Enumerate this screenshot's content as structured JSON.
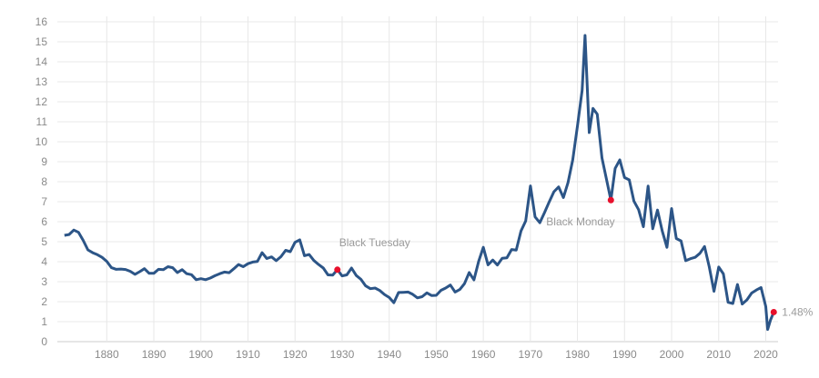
{
  "chart_data": {
    "type": "line",
    "title": "",
    "xlabel": "",
    "ylabel": "",
    "xlim": [
      1869.5,
      2023
    ],
    "ylim": [
      0,
      16
    ],
    "grid": true,
    "x_ticks": [
      1880,
      1890,
      1900,
      1910,
      1920,
      1930,
      1940,
      1950,
      1960,
      1970,
      1980,
      1990,
      2000,
      2010,
      2020
    ],
    "y_ticks": [
      0,
      1,
      2,
      3,
      4,
      5,
      6,
      7,
      8,
      9,
      10,
      11,
      12,
      13,
      14,
      15,
      16
    ],
    "line_color": "#2c5587",
    "marker_color": "#e8102c",
    "series": [
      {
        "x": [
          1871,
          1872,
          1873,
          1874,
          1875,
          1876,
          1877,
          1878,
          1879,
          1880,
          1881,
          1882,
          1883,
          1884,
          1885,
          1886,
          1887,
          1888,
          1889,
          1890,
          1891,
          1892,
          1893,
          1894,
          1895,
          1896,
          1897,
          1898,
          1899,
          1900,
          1901,
          1902,
          1903,
          1904,
          1905,
          1906,
          1907,
          1908,
          1909,
          1910,
          1911,
          1912,
          1913,
          1914,
          1915,
          1916,
          1917,
          1918,
          1919,
          1920,
          1921,
          1922,
          1923,
          1924,
          1925,
          1926,
          1927,
          1928,
          1929,
          1930,
          1931,
          1932,
          1933,
          1934,
          1935,
          1936,
          1937,
          1938,
          1939,
          1940,
          1941,
          1942,
          1943,
          1944,
          1945,
          1946,
          1947,
          1948,
          1949,
          1950,
          1951,
          1952,
          1953,
          1954,
          1955,
          1956,
          1957,
          1958,
          1959,
          1960,
          1961,
          1962,
          1963,
          1964,
          1965,
          1966,
          1967,
          1968,
          1969,
          1970,
          1971,
          1972,
          1973,
          1974,
          1975,
          1976,
          1977,
          1978,
          1979,
          1980,
          1981,
          1981.6,
          1982.5,
          1983.3,
          1984.2,
          1985.2,
          1987.1,
          1988,
          1989,
          1990,
          1991,
          1992,
          1993,
          1994,
          1995,
          1996,
          1997,
          1998,
          1999,
          2000,
          2001,
          2002,
          2003,
          2004,
          2005,
          2006,
          2007,
          2008,
          2009,
          2010,
          2011,
          2012,
          2013,
          2014,
          2015,
          2016,
          2017,
          2018,
          2019,
          2020,
          2020.4,
          2021,
          2021.7
        ],
        "values": [
          5.32,
          5.36,
          5.58,
          5.47,
          5.07,
          4.59,
          4.45,
          4.35,
          4.22,
          4.02,
          3.7,
          3.62,
          3.63,
          3.61,
          3.52,
          3.37,
          3.5,
          3.65,
          3.42,
          3.42,
          3.62,
          3.6,
          3.75,
          3.7,
          3.46,
          3.6,
          3.4,
          3.35,
          3.1,
          3.15,
          3.1,
          3.18,
          3.3,
          3.4,
          3.48,
          3.45,
          3.65,
          3.86,
          3.75,
          3.9,
          3.98,
          4.01,
          4.45,
          4.16,
          4.24,
          4.05,
          4.25,
          4.57,
          4.5,
          4.97,
          5.09,
          4.3,
          4.36,
          4.06,
          3.86,
          3.68,
          3.34,
          3.33,
          3.6,
          3.29,
          3.34,
          3.68,
          3.31,
          3.12,
          2.79,
          2.65,
          2.68,
          2.56,
          2.36,
          2.21,
          1.95,
          2.46,
          2.47,
          2.48,
          2.37,
          2.19,
          2.25,
          2.44,
          2.31,
          2.32,
          2.57,
          2.68,
          2.83,
          2.48,
          2.61,
          2.9,
          3.46,
          3.09,
          4.02,
          4.72,
          3.84,
          4.08,
          3.83,
          4.17,
          4.19,
          4.61,
          4.58,
          5.53,
          6.04,
          7.79,
          6.24,
          5.95,
          6.46,
          6.99,
          7.5,
          7.74,
          7.21,
          7.96,
          9.1,
          10.8,
          12.57,
          15.32,
          10.46,
          11.67,
          11.38,
          9.19,
          7.08,
          8.67,
          9.09,
          8.21,
          8.09,
          7.03,
          6.6,
          5.75,
          7.78,
          5.65,
          6.58,
          5.54,
          4.72,
          6.66,
          5.16,
          5.04,
          4.05,
          4.15,
          4.22,
          4.42,
          4.76,
          3.74,
          2.52,
          3.73,
          3.39,
          1.97,
          1.91,
          2.86,
          1.88,
          2.09,
          2.43,
          2.58,
          2.71,
          1.76,
          0.61,
          1.08,
          1.48
        ]
      }
    ],
    "annotations": [
      {
        "x": 1929,
        "y": 3.6,
        "label": "Black Tuesday",
        "marker": true
      },
      {
        "x": 1987.1,
        "y": 7.08,
        "label": "Black Monday",
        "marker": true
      },
      {
        "x": 2021.7,
        "y": 1.48,
        "label": "1.48%",
        "marker": true
      }
    ]
  }
}
